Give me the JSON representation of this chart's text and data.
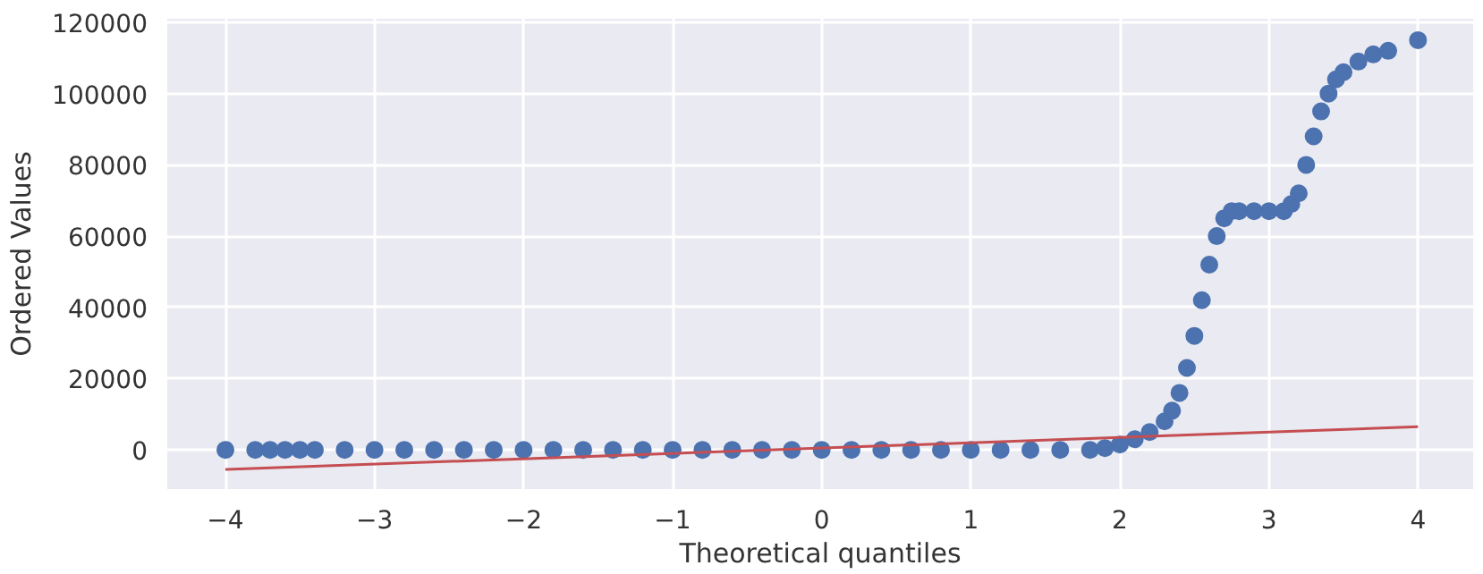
{
  "chart_data": {
    "type": "scatter",
    "xlabel": "Theoretical quantiles",
    "ylabel": "Ordered Values",
    "xlim": [
      -4.39,
      4.37
    ],
    "ylim": [
      -11000,
      121000
    ],
    "xticks": [
      {
        "value": -4,
        "label": "−4"
      },
      {
        "value": -3,
        "label": "−3"
      },
      {
        "value": -2,
        "label": "−2"
      },
      {
        "value": -1,
        "label": "−1"
      },
      0,
      1,
      2,
      3,
      4
    ],
    "yticks": [
      0,
      20000,
      40000,
      60000,
      80000,
      100000,
      120000
    ],
    "grid": true,
    "series": [
      {
        "marker": "circle",
        "color": "#4c72b0",
        "x": [
          -4.0,
          -3.8,
          -3.7,
          -3.6,
          -3.5,
          -3.4,
          -3.2,
          -3.0,
          -2.8,
          -2.6,
          -2.4,
          -2.2,
          -2.0,
          -1.8,
          -1.6,
          -1.4,
          -1.2,
          -1.0,
          -0.8,
          -0.6,
          -0.4,
          -0.2,
          0.0,
          0.2,
          0.4,
          0.6,
          0.8,
          1.0,
          1.2,
          1.4,
          1.6,
          1.8,
          1.9,
          2.0,
          2.1,
          2.2,
          2.3,
          2.35,
          2.4,
          2.45,
          2.5,
          2.55,
          2.6,
          2.65,
          2.7,
          2.75,
          2.8,
          2.9,
          3.0,
          3.1,
          3.15,
          3.2,
          3.25,
          3.3,
          3.35,
          3.4,
          3.45,
          3.5,
          3.6,
          3.7,
          3.8,
          4.0
        ],
        "values": [
          0,
          0,
          0,
          0,
          0,
          0,
          0,
          0,
          0,
          0,
          0,
          0,
          0,
          0,
          0,
          0,
          0,
          0,
          0,
          0,
          0,
          0,
          0,
          0,
          0,
          0,
          0,
          0,
          0,
          0,
          0,
          0,
          500,
          1500,
          3000,
          5000,
          8000,
          11000,
          16000,
          23000,
          32000,
          42000,
          52000,
          60000,
          65000,
          67000,
          67000,
          67000,
          67000,
          67000,
          69000,
          72000,
          80000,
          88000,
          95000,
          100000,
          104000,
          106000,
          109000,
          111000,
          112000,
          115000
        ]
      },
      {
        "type": "line",
        "color": "#c44e52",
        "x": [
          -4,
          4
        ],
        "values": [
          -5500,
          6500
        ]
      }
    ]
  }
}
